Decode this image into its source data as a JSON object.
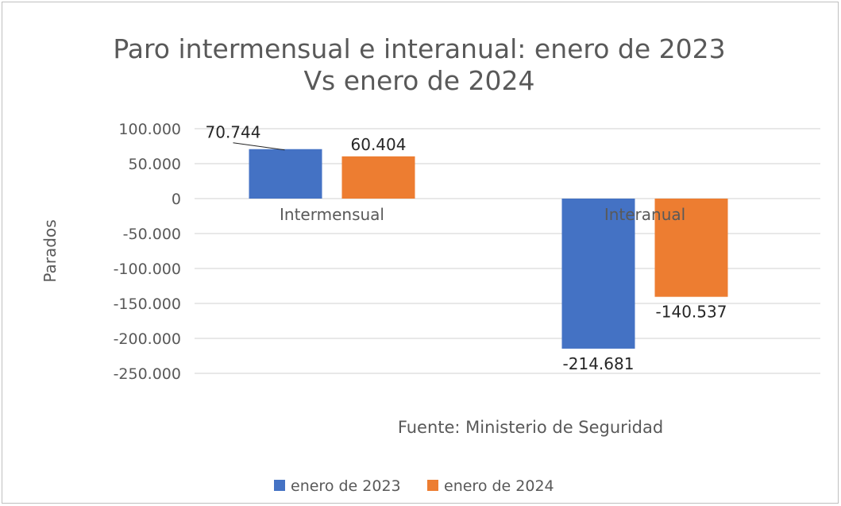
{
  "chart_data": {
    "type": "bar",
    "title": "Paro intermensual e interanual: enero de 2023 Vs enero de 2024",
    "title_lines": [
      "Paro intermensual e interanual: enero de 2023",
      "Vs enero de 2024"
    ],
    "ylabel": "Parados",
    "xlabel": "",
    "categories": [
      "Intermensual",
      "Interanual"
    ],
    "series": [
      {
        "name": "enero de 2023",
        "color": "#4472C4",
        "values": [
          70744,
          -214681
        ],
        "labels": [
          "70.744",
          "-214.681"
        ]
      },
      {
        "name": "enero de 2024",
        "color": "#ED7D31",
        "values": [
          60404,
          -140537
        ],
        "labels": [
          "60.404",
          "-140.537"
        ]
      }
    ],
    "ylim": [
      -250000,
      100000
    ],
    "yticks": [
      100000,
      50000,
      0,
      -50000,
      -100000,
      -150000,
      -200000,
      -250000
    ],
    "ytick_labels": [
      "100.000",
      "50.000",
      "0",
      "-50.000",
      "-100.000",
      "-150.000",
      "-200.000",
      "-250.000"
    ],
    "grid": true,
    "legend_position": "bottom",
    "annotation": "Fuente: Ministerio de Seguridad"
  }
}
